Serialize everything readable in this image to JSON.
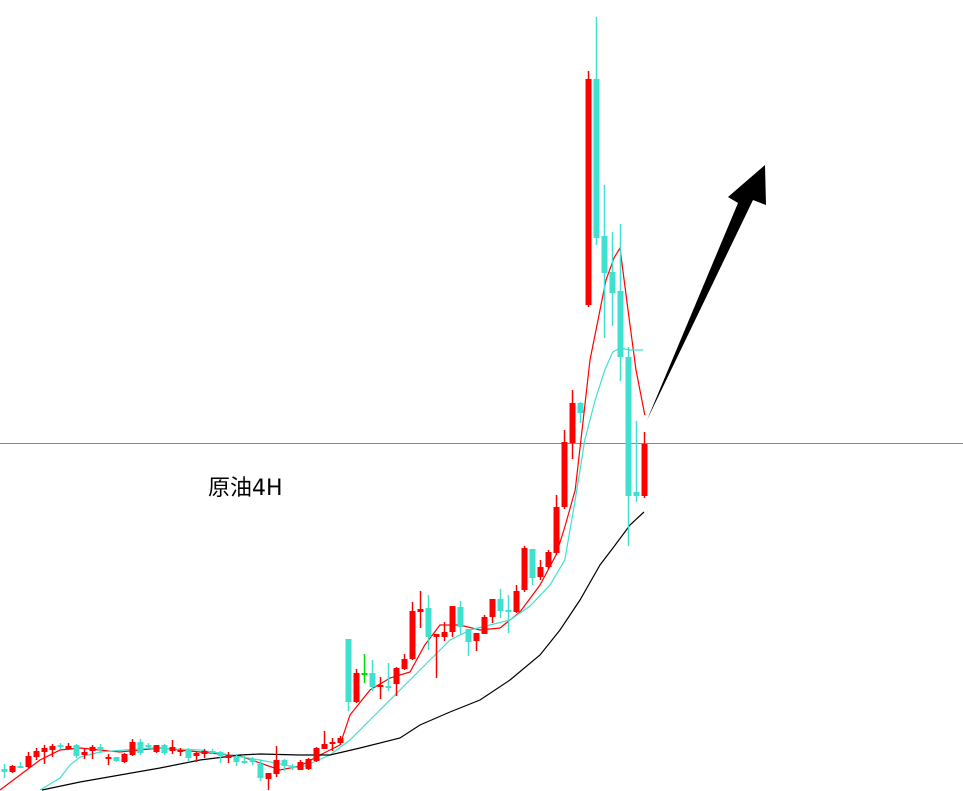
{
  "chart_data": {
    "type": "candlestick",
    "title": "原油4H",
    "xlabel": "",
    "ylabel": "",
    "grid": false,
    "ylim": [
      0,
      800
    ],
    "colors": {
      "up": "#ff0000",
      "down": "#40e0d0",
      "neutral": "#00dd00",
      "ma_fast": "#ff0000",
      "ma_mid": "#40e0d0",
      "ma_slow": "#000000",
      "hline": "#7a8a99",
      "arrow": "#000000"
    },
    "candle_fields": [
      "open",
      "high",
      "low",
      "close"
    ],
    "candles": [
      [
        31,
        36,
        22,
        28
      ],
      [
        28,
        35,
        27,
        34
      ],
      [
        34,
        38,
        32,
        33
      ],
      [
        33,
        48,
        32,
        44
      ],
      [
        43,
        52,
        40,
        49
      ],
      [
        48,
        55,
        36,
        52
      ],
      [
        50,
        56,
        43,
        54
      ],
      [
        55,
        57,
        51,
        53
      ],
      [
        51,
        57,
        50,
        54
      ],
      [
        55,
        56,
        42,
        44
      ],
      [
        45,
        52,
        41,
        48
      ],
      [
        49,
        55,
        41,
        53
      ],
      [
        53,
        56,
        47,
        50
      ],
      [
        41,
        46,
        35,
        43
      ],
      [
        43,
        43,
        38,
        39
      ],
      [
        38,
        47,
        37,
        46
      ],
      [
        45,
        61,
        44,
        58
      ],
      [
        58,
        61,
        45,
        47
      ],
      [
        55,
        57,
        52,
        54
      ],
      [
        48,
        55,
        47,
        55
      ],
      [
        55,
        56,
        45,
        47
      ],
      [
        49,
        60,
        46,
        53
      ],
      [
        48,
        52,
        44,
        50
      ],
      [
        51,
        52,
        38,
        42
      ],
      [
        44,
        49,
        38,
        47
      ],
      [
        46,
        51,
        42,
        49
      ],
      [
        49,
        51,
        46,
        48
      ],
      [
        48,
        49,
        37,
        44
      ],
      [
        42,
        48,
        37,
        45
      ],
      [
        43,
        46,
        34,
        38
      ],
      [
        39,
        44,
        36,
        38
      ],
      [
        41,
        43,
        35,
        38
      ],
      [
        36,
        40,
        19,
        22
      ],
      [
        21,
        27,
        10,
        27
      ],
      [
        26,
        54,
        23,
        40
      ],
      [
        40,
        41,
        29,
        34
      ],
      [
        34,
        36,
        30,
        32
      ],
      [
        30,
        40,
        30,
        38
      ],
      [
        31,
        42,
        30,
        41
      ],
      [
        39,
        53,
        38,
        52
      ],
      [
        51,
        69,
        51,
        56
      ],
      [
        56,
        62,
        49,
        58
      ],
      [
        57,
        64,
        55,
        62
      ],
      [
        161,
        161,
        89,
        98
      ],
      [
        98,
        131,
        97,
        127
      ],
      [
        127,
        146,
        117,
        127
      ],
      [
        127,
        140,
        109,
        113
      ],
      [
        113,
        123,
        101,
        115
      ],
      [
        114,
        137,
        109,
        114
      ],
      [
        116,
        133,
        104,
        132
      ],
      [
        131,
        146,
        130,
        141
      ],
      [
        141,
        198,
        140,
        189
      ],
      [
        188,
        209,
        172,
        191
      ],
      [
        192,
        205,
        150,
        163
      ],
      [
        163,
        166,
        122,
        166
      ],
      [
        163,
        178,
        159,
        168
      ],
      [
        168,
        194,
        163,
        194
      ],
      [
        193,
        199,
        166,
        173
      ],
      [
        171,
        171,
        144,
        158
      ],
      [
        159,
        167,
        149,
        167
      ],
      [
        166,
        185,
        166,
        183
      ],
      [
        183,
        201,
        177,
        201
      ],
      [
        201,
        211,
        182,
        189
      ],
      [
        190,
        205,
        167,
        190
      ],
      [
        188,
        215,
        187,
        209
      ],
      [
        210,
        254,
        208,
        252
      ],
      [
        251,
        251,
        215,
        222
      ],
      [
        223,
        240,
        220,
        233
      ],
      [
        233,
        250,
        231,
        248
      ],
      [
        247,
        305,
        245,
        293
      ],
      [
        293,
        370,
        291,
        358
      ],
      [
        357,
        410,
        341,
        397
      ],
      [
        397,
        398,
        377,
        387
      ],
      [
        495,
        729,
        493,
        721
      ],
      [
        721,
        783,
        555,
        562
      ],
      [
        564,
        615,
        462,
        527
      ],
      [
        528,
        568,
        474,
        507
      ],
      [
        509,
        576,
        419,
        443
      ],
      [
        443,
        453,
        254,
        304
      ],
      [
        308,
        379,
        298,
        304
      ],
      [
        304,
        368,
        302,
        356
      ]
    ],
    "neutral_indices": [
      45
    ],
    "moving_averages": [
      {
        "name": "ma_fast",
        "points": [
          [
            -0.5,
            10
          ],
          [
            2,
            25
          ],
          [
            4.5,
            40
          ],
          [
            7,
            50
          ],
          [
            9.5,
            52
          ],
          [
            14.5,
            48
          ],
          [
            19.5,
            52
          ],
          [
            24.5,
            48
          ],
          [
            29.5,
            44
          ],
          [
            34.5,
            30
          ],
          [
            37,
            34
          ],
          [
            39.5,
            45
          ],
          [
            42,
            55
          ],
          [
            43.25,
            85
          ],
          [
            45.75,
            110
          ],
          [
            48.25,
            122
          ],
          [
            50.75,
            128
          ],
          [
            52.6,
            155
          ],
          [
            54.5,
            175
          ],
          [
            57,
            175
          ],
          [
            59.5,
            170
          ],
          [
            62,
            172
          ],
          [
            64.5,
            188
          ],
          [
            67,
            215
          ],
          [
            69,
            245
          ],
          [
            70.1,
            273
          ],
          [
            71.4,
            310
          ],
          [
            72.4,
            380
          ],
          [
            73.25,
            440
          ],
          [
            74.25,
            480
          ],
          [
            75.25,
            520
          ],
          [
            76.25,
            542
          ],
          [
            77,
            552
          ],
          [
            78,
            490
          ],
          [
            79,
            430
          ],
          [
            80.1,
            385
          ]
        ]
      },
      {
        "name": "ma_mid",
        "points": [
          [
            4.5,
            10
          ],
          [
            7,
            22
          ],
          [
            8.25,
            35
          ],
          [
            9.5,
            43
          ],
          [
            12,
            48
          ],
          [
            18.25,
            52
          ],
          [
            24.5,
            50
          ],
          [
            32,
            40
          ],
          [
            37,
            32
          ],
          [
            40.75,
            45
          ],
          [
            43.25,
            60
          ],
          [
            47,
            90
          ],
          [
            50.75,
            120
          ],
          [
            53.25,
            140
          ],
          [
            55.75,
            160
          ],
          [
            58.25,
            170
          ],
          [
            60.75,
            175
          ],
          [
            63.25,
            180
          ],
          [
            65.75,
            194
          ],
          [
            68.25,
            215
          ],
          [
            70.1,
            240
          ],
          [
            71.4,
            300
          ],
          [
            72.6,
            360
          ],
          [
            73.9,
            400
          ],
          [
            75.1,
            430
          ],
          [
            76.1,
            448
          ],
          [
            77,
            452
          ],
          [
            78.25,
            450
          ],
          [
            79.9,
            450
          ]
        ]
      },
      {
        "name": "ma_slow",
        "points": [
          [
            4.75,
            10
          ],
          [
            9.5,
            18
          ],
          [
            14.5,
            25
          ],
          [
            19.5,
            32
          ],
          [
            24.5,
            40
          ],
          [
            29.5,
            45
          ],
          [
            32,
            46
          ],
          [
            37,
            45
          ],
          [
            40.75,
            45
          ],
          [
            44.5,
            52
          ],
          [
            49.5,
            62
          ],
          [
            52,
            75
          ],
          [
            55.75,
            88
          ],
          [
            59.5,
            100
          ],
          [
            63.25,
            120
          ],
          [
            67,
            145
          ],
          [
            69.5,
            170
          ],
          [
            72,
            200
          ],
          [
            74.5,
            235
          ],
          [
            76.4,
            255
          ],
          [
            78.25,
            275
          ],
          [
            80,
            288
          ]
        ]
      }
    ],
    "horizontal_line": 357,
    "annotations": [
      {
        "type": "arrow",
        "direction": "up-right",
        "from_candle": 80
      }
    ]
  }
}
